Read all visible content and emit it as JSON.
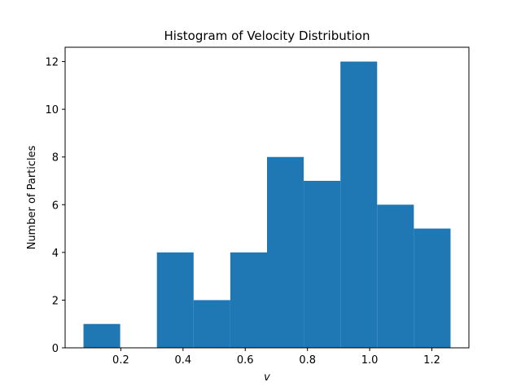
{
  "chart_data": {
    "type": "histogram",
    "title": "Histogram of Velocity Distribution",
    "xlabel": "v",
    "ylabel": "Number of Particles",
    "bin_edges": [
      0.08,
      0.198,
      0.316,
      0.434,
      0.552,
      0.67,
      0.788,
      0.906,
      1.024,
      1.142,
      1.26
    ],
    "counts": [
      1,
      0,
      4,
      2,
      4,
      8,
      7,
      12,
      6,
      5
    ],
    "xlim": [
      0.021,
      1.319
    ],
    "ylim": [
      0,
      12.6
    ],
    "xticks": [
      0.2,
      0.4,
      0.6,
      0.8,
      1.0,
      1.2
    ],
    "xtick_labels": [
      "0.2",
      "0.4",
      "0.6",
      "0.8",
      "1.0",
      "1.2"
    ],
    "yticks": [
      0,
      2,
      4,
      6,
      8,
      10,
      12
    ],
    "ytick_labels": [
      "0",
      "2",
      "4",
      "6",
      "8",
      "10",
      "12"
    ],
    "bar_color": "#1f77b4",
    "grid": false,
    "legend": "none"
  }
}
